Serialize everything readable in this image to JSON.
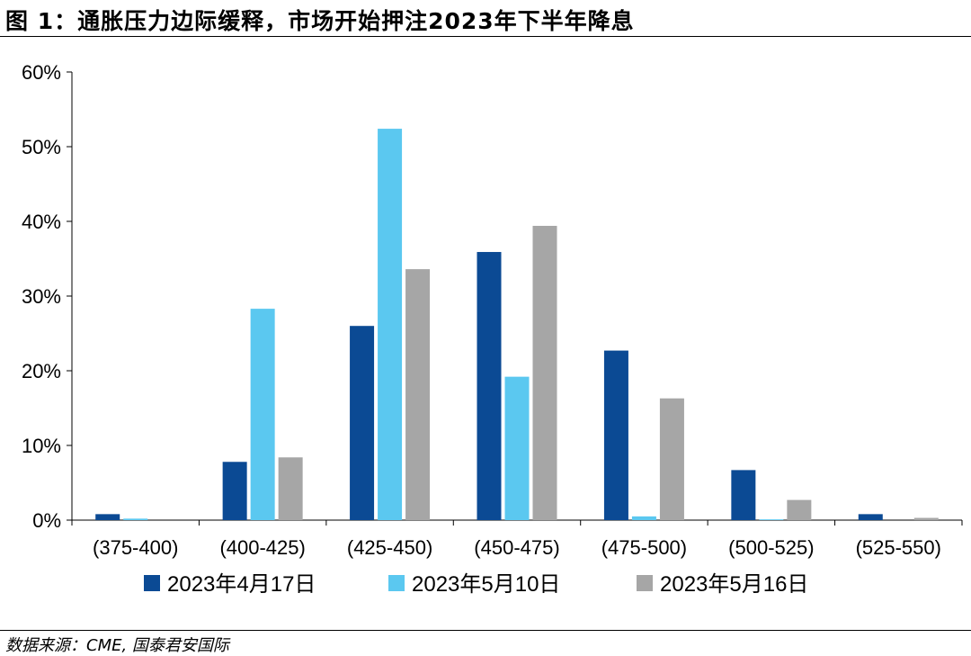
{
  "header": {
    "title": "图 1：通胀压力边际缓释，市场开始押注2023年下半年降息"
  },
  "footer": {
    "source": "数据来源：CME, 国泰君安国际"
  },
  "chart_data": {
    "type": "bar",
    "title": "图 1：通胀压力边际缓释，市场开始押注2023年下半年降息",
    "xlabel": "",
    "ylabel": "",
    "categories": [
      "(375-400)",
      "(400-425)",
      "(425-450)",
      "(450-475)",
      "(475-500)",
      "(500-525)",
      "(525-550)"
    ],
    "series": [
      {
        "name": "2023年4月17日",
        "color": "#0B4A94",
        "values": [
          0.8,
          7.8,
          26.0,
          35.9,
          22.7,
          6.7,
          0.8
        ]
      },
      {
        "name": "2023年5月10日",
        "color": "#5BC8F0",
        "values": [
          0.2,
          28.3,
          52.4,
          19.2,
          0.5,
          0.1,
          0.0
        ]
      },
      {
        "name": "2023年5月16日",
        "color": "#A6A6A6",
        "values": [
          0.0,
          8.4,
          33.6,
          39.4,
          16.3,
          2.7,
          0.3
        ]
      }
    ],
    "ylim": [
      0,
      60
    ],
    "yticks": [
      0,
      10,
      20,
      30,
      40,
      50,
      60
    ],
    "ytick_labels": [
      "0%",
      "10%",
      "20%",
      "30%",
      "40%",
      "50%",
      "60%"
    ],
    "grid": false,
    "legend": "bottom"
  }
}
